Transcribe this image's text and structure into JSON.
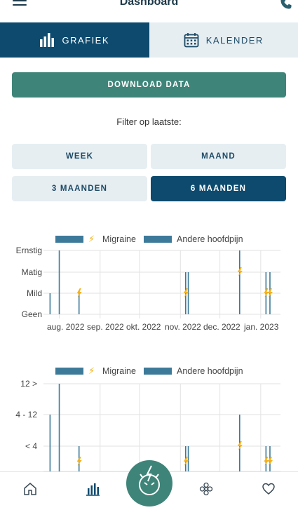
{
  "header": {
    "title": "Dashboard",
    "menu_icon": "hamburger-icon",
    "phone_icon": "phone-icon"
  },
  "tabs": [
    {
      "label": "GRAFIEK",
      "icon": "bar-chart-icon",
      "active": true
    },
    {
      "label": "KALENDER",
      "icon": "calendar-icon",
      "active": false
    }
  ],
  "download_label": "DOWNLOAD DATA",
  "filter": {
    "label": "Filter op laatste:",
    "options": [
      {
        "label": "WEEK",
        "selected": false
      },
      {
        "label": "MAAND",
        "selected": false
      },
      {
        "label": "3 MAANDEN",
        "selected": false
      },
      {
        "label": "6 MAANDEN",
        "selected": true
      }
    ]
  },
  "colors": {
    "primary": "#0d4a6e",
    "teal": "#3f8479",
    "bar": "#3d7a9a",
    "bolt": "#f2b11f"
  },
  "chart_data": [
    {
      "type": "bar",
      "legend": [
        "Migraine",
        "Andere hoofdpijn"
      ],
      "y_categories": [
        "Geen",
        "Mild",
        "Matig",
        "Ernstig"
      ],
      "x_ticks": [
        "aug. 2022",
        "sep. 2022",
        "okt. 2022",
        "nov. 2022",
        "dec. 2022",
        "jan. 2023"
      ],
      "series": [
        {
          "name": "Migraine",
          "events": [
            {
              "date": "2022-08-16",
              "level": "Mild"
            },
            {
              "date": "2022-11-05",
              "level": "Mild"
            },
            {
              "date": "2022-12-16",
              "level": "Matig"
            },
            {
              "date": "2023-01-05",
              "level": "Mild"
            },
            {
              "date": "2023-01-08",
              "level": "Mild"
            }
          ]
        },
        {
          "name": "Andere hoofdpijn",
          "events": [
            {
              "date": "2022-07-25",
              "level": "Mild"
            },
            {
              "date": "2022-08-01",
              "level": "Ernstig"
            },
            {
              "date": "2022-08-16",
              "level": "Mild"
            },
            {
              "date": "2022-11-05",
              "level": "Matig"
            },
            {
              "date": "2022-11-07",
              "level": "Matig"
            },
            {
              "date": "2022-12-16",
              "level": "Ernstig"
            },
            {
              "date": "2023-01-05",
              "level": "Matig"
            },
            {
              "date": "2023-01-08",
              "level": "Matig"
            }
          ]
        }
      ]
    },
    {
      "type": "bar",
      "legend": [
        "Migraine",
        "Andere hoofdpijn"
      ],
      "y_categories": [
        "",
        "< 4",
        "4 - 12",
        "12 >"
      ],
      "series": [
        {
          "name": "Migraine",
          "events": [
            {
              "date": "2022-08-16",
              "level": ""
            },
            {
              "date": "2022-11-05",
              "level": ""
            },
            {
              "date": "2022-12-16",
              "level": "< 4"
            },
            {
              "date": "2023-01-05",
              "level": ""
            },
            {
              "date": "2023-01-08",
              "level": ""
            }
          ]
        },
        {
          "name": "Andere hoofdpijn",
          "events": [
            {
              "date": "2022-07-25",
              "level": "4 - 12"
            },
            {
              "date": "2022-08-01",
              "level": "12 >"
            },
            {
              "date": "2022-08-16",
              "level": "< 4"
            },
            {
              "date": "2022-11-05",
              "level": "< 4"
            },
            {
              "date": "2022-11-07",
              "level": "< 4"
            },
            {
              "date": "2022-12-16",
              "level": "4 - 12"
            },
            {
              "date": "2023-01-05",
              "level": "< 4"
            },
            {
              "date": "2023-01-08",
              "level": "< 4"
            }
          ]
        }
      ]
    }
  ],
  "bottom_nav": [
    "home-icon",
    "stats-icon",
    "migraine-face-icon",
    "flower-icon",
    "heart-icon"
  ]
}
